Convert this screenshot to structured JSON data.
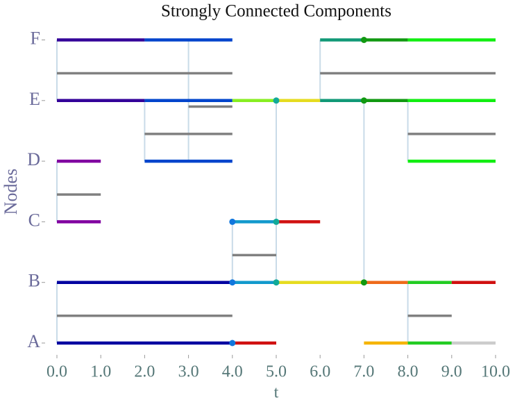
{
  "chart_data": {
    "type": "timeline",
    "title": "Strongly Connected Components",
    "xlabel": "t",
    "ylabel": "Nodes",
    "categories": [
      "A",
      "B",
      "C",
      "D",
      "E",
      "F"
    ],
    "xlim": [
      0,
      10
    ],
    "xticks": [
      {
        "value": 0,
        "label": "0.0"
      },
      {
        "value": 1,
        "label": "1.0"
      },
      {
        "value": 2,
        "label": "2.0"
      },
      {
        "value": 3,
        "label": "3.0"
      },
      {
        "value": 4,
        "label": "4.0"
      },
      {
        "value": 5,
        "label": "5.0"
      },
      {
        "value": 6,
        "label": "6.0"
      },
      {
        "value": 7,
        "label": "7.0"
      },
      {
        "value": 8,
        "label": "8.0"
      },
      {
        "value": 9,
        "label": "9.0"
      },
      {
        "value": 10,
        "label": "10.0"
      }
    ],
    "link_color": "#808080",
    "connection_color": "#c9dbe8",
    "links": [
      {
        "source": "A",
        "target": "B",
        "start": 0,
        "end": 4
      },
      {
        "source": "B",
        "target": "C",
        "start": 4,
        "end": 5
      },
      {
        "source": "C",
        "target": "D",
        "start": 0,
        "end": 1
      },
      {
        "source": "D",
        "target": "E",
        "start": 2,
        "end": 4
      },
      {
        "source": "D",
        "target": "F",
        "start": 3,
        "end": 4
      },
      {
        "source": "E",
        "target": "F",
        "start": 0,
        "end": 4
      },
      {
        "source": "E",
        "target": "F",
        "start": 6,
        "end": 10
      },
      {
        "source": "D",
        "target": "E",
        "start": 8,
        "end": 10
      },
      {
        "source": "A",
        "target": "B",
        "start": 8,
        "end": 9
      }
    ],
    "connections": [
      {
        "t": 0,
        "from": "A",
        "to": "B"
      },
      {
        "t": 0,
        "from": "C",
        "to": "D"
      },
      {
        "t": 0,
        "from": "E",
        "to": "F"
      },
      {
        "t": 2,
        "from": "D",
        "to": "E"
      },
      {
        "t": 3,
        "from": "D",
        "to": "F"
      },
      {
        "t": 4,
        "from": "B",
        "to": "C"
      },
      {
        "t": 5,
        "from": "B",
        "to": "E"
      },
      {
        "t": 6,
        "from": "E",
        "to": "F"
      },
      {
        "t": 7,
        "from": "B",
        "to": "E"
      },
      {
        "t": 8,
        "from": "A",
        "to": "B"
      },
      {
        "t": 8,
        "from": "D",
        "to": "E"
      }
    ],
    "segments": [
      {
        "node": "A",
        "start": 0,
        "end": 4,
        "color": "#0000a0"
      },
      {
        "node": "A",
        "start": 4,
        "end": 5,
        "color": "#d01010"
      },
      {
        "node": "A",
        "start": 7,
        "end": 8,
        "color": "#f5b400"
      },
      {
        "node": "A",
        "start": 8,
        "end": 9,
        "color": "#22cc22"
      },
      {
        "node": "A",
        "start": 9,
        "end": 10,
        "color": "#cccccc"
      },
      {
        "node": "B",
        "start": 0,
        "end": 4,
        "color": "#0000a0"
      },
      {
        "node": "B",
        "start": 4,
        "end": 5,
        "color": "#1199cc"
      },
      {
        "node": "B",
        "start": 5,
        "end": 7,
        "color": "#e6dc20"
      },
      {
        "node": "B",
        "start": 7,
        "end": 8,
        "color": "#ee6a1a"
      },
      {
        "node": "B",
        "start": 8,
        "end": 9,
        "color": "#22cc22"
      },
      {
        "node": "B",
        "start": 9,
        "end": 10,
        "color": "#d01010"
      },
      {
        "node": "C",
        "start": 0,
        "end": 1,
        "color": "#8000a0"
      },
      {
        "node": "C",
        "start": 4,
        "end": 5,
        "color": "#1199cc"
      },
      {
        "node": "C",
        "start": 5,
        "end": 6,
        "color": "#d01010"
      },
      {
        "node": "D",
        "start": 0,
        "end": 1,
        "color": "#8000a0"
      },
      {
        "node": "D",
        "start": 2,
        "end": 4,
        "color": "#0044cc"
      },
      {
        "node": "D",
        "start": 8,
        "end": 10,
        "color": "#11ee11"
      },
      {
        "node": "E",
        "start": 0,
        "end": 2,
        "color": "#330099"
      },
      {
        "node": "E",
        "start": 2,
        "end": 4,
        "color": "#0044cc"
      },
      {
        "node": "E",
        "start": 4,
        "end": 5,
        "color": "#88ee22"
      },
      {
        "node": "E",
        "start": 5,
        "end": 6,
        "color": "#e6dc20"
      },
      {
        "node": "E",
        "start": 6,
        "end": 7,
        "color": "#119977"
      },
      {
        "node": "E",
        "start": 7,
        "end": 8,
        "color": "#119911"
      },
      {
        "node": "E",
        "start": 8,
        "end": 10,
        "color": "#11ee11"
      },
      {
        "node": "F",
        "start": 0,
        "end": 2,
        "color": "#330099"
      },
      {
        "node": "F",
        "start": 2,
        "end": 4,
        "color": "#0044cc"
      },
      {
        "node": "F",
        "start": 6,
        "end": 7,
        "color": "#119977"
      },
      {
        "node": "F",
        "start": 7,
        "end": 8,
        "color": "#119911"
      },
      {
        "node": "F",
        "start": 8,
        "end": 10,
        "color": "#11ee11"
      }
    ],
    "points": [
      {
        "node": "A",
        "t": 4,
        "color": "#1177dd"
      },
      {
        "node": "B",
        "t": 4,
        "color": "#1177dd"
      },
      {
        "node": "B",
        "t": 5,
        "color": "#11aa99"
      },
      {
        "node": "B",
        "t": 7,
        "color": "#119911"
      },
      {
        "node": "C",
        "t": 4,
        "color": "#1177dd"
      },
      {
        "node": "C",
        "t": 5,
        "color": "#11aa99"
      },
      {
        "node": "E",
        "t": 5,
        "color": "#11aa99"
      },
      {
        "node": "E",
        "t": 7,
        "color": "#119911"
      },
      {
        "node": "F",
        "t": 7,
        "color": "#119911"
      }
    ]
  }
}
